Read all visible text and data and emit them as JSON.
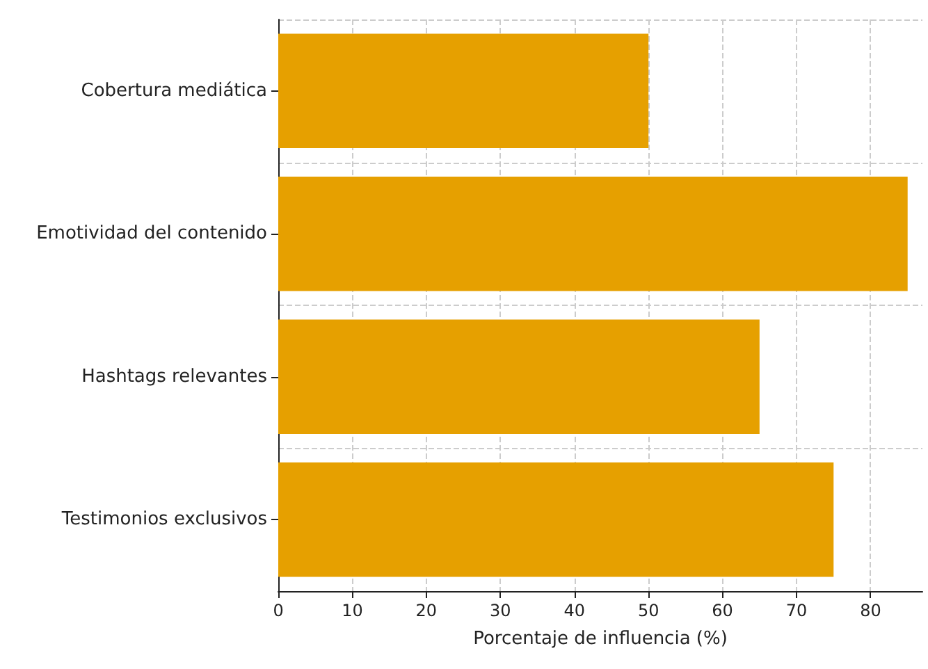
{
  "chart_data": {
    "type": "bar",
    "orientation": "horizontal",
    "xlabel": "Porcentaje de influencia (%)",
    "categories": [
      "Cobertura mediática",
      "Emotividad del contenido",
      "Hashtags relevantes",
      "Testimonios exclusivos"
    ],
    "values": [
      50,
      85,
      65,
      75
    ],
    "color": "#e6a000",
    "xlim": [
      0,
      87
    ],
    "xticks": [
      0,
      10,
      20,
      30,
      40,
      50,
      60,
      70,
      80
    ],
    "grid": true
  }
}
